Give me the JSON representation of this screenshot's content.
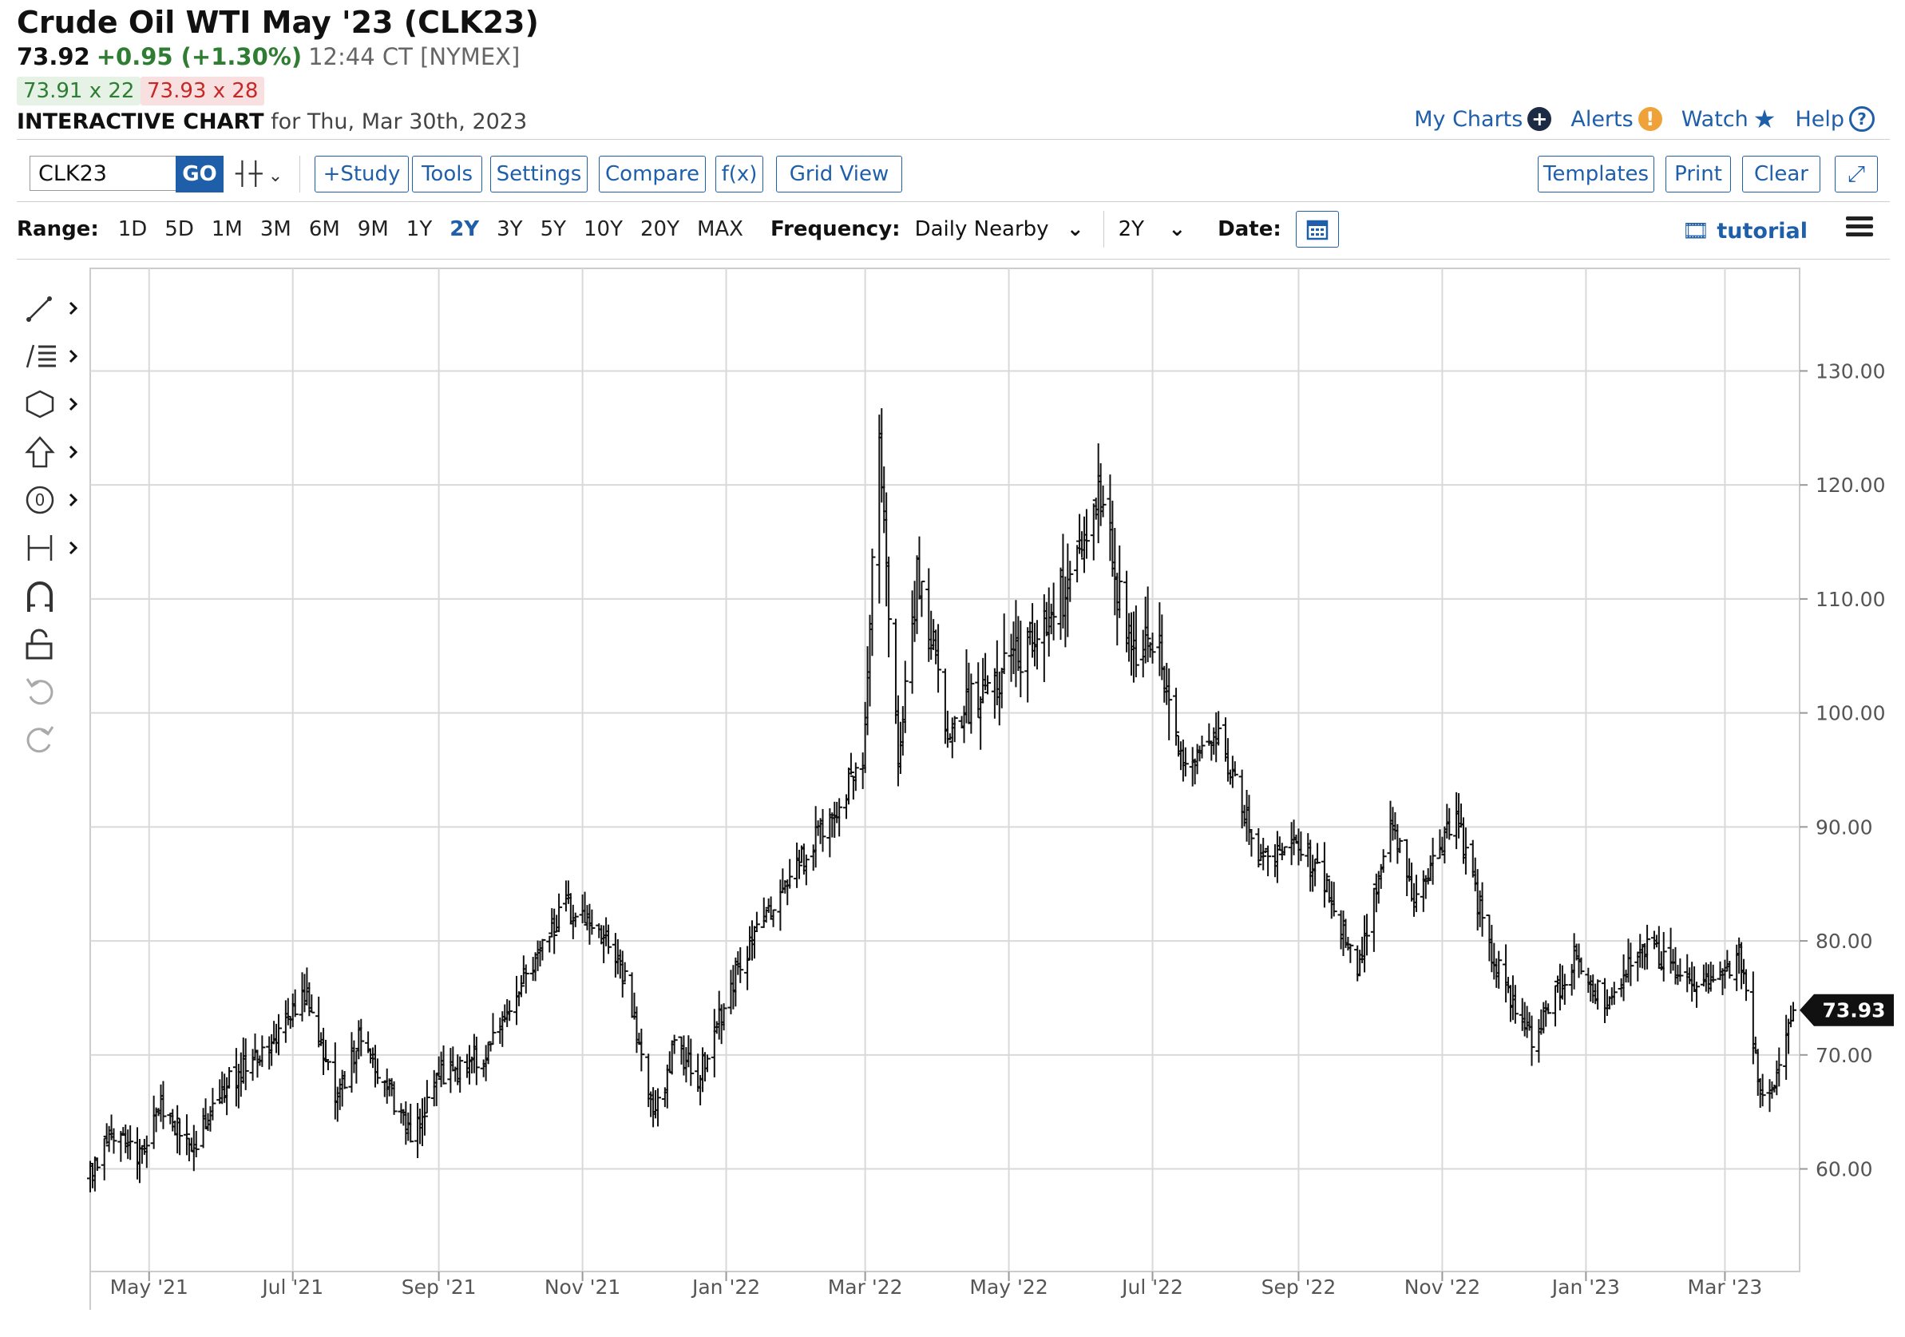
{
  "header": {
    "title": "Crude Oil WTI May '23 (CLK23)",
    "last": "73.92",
    "change": "+0.95 (+1.30%)",
    "time": "12:44 CT [NYMEX]",
    "bid": "73.91 x 22",
    "ask": "73.93 x 28",
    "chart_label": "INTERACTIVE CHART",
    "chart_date": "for Thu, Mar 30th, 2023"
  },
  "toplinks": {
    "my_charts": "My Charts",
    "alerts": "Alerts",
    "watch": "Watch",
    "help": "Help"
  },
  "toolbar": {
    "symbol": "CLK23",
    "go": "GO",
    "study": "+Study",
    "tools": "Tools",
    "settings": "Settings",
    "compare": "Compare",
    "fx": "f(x)",
    "grid_view": "Grid View",
    "templates": "Templates",
    "print": "Print",
    "clear": "Clear"
  },
  "range": {
    "label": "Range:",
    "options": [
      "1D",
      "5D",
      "1M",
      "3M",
      "6M",
      "9M",
      "1Y",
      "2Y",
      "3Y",
      "5Y",
      "10Y",
      "20Y",
      "MAX"
    ],
    "selected": "2Y",
    "frequency_label": "Frequency:",
    "frequency_value": "Daily Nearby",
    "period_value": "2Y",
    "date_label": "Date:"
  },
  "tutorial": "tutorial",
  "colors": {
    "accent": "#1f5faa",
    "up": "#2e7d32",
    "down": "#c62828",
    "bars": "#111111",
    "grid": "#d9d9d9"
  },
  "chart_data": {
    "type": "ohlc",
    "x_labels": [
      "May '21",
      "Jul '21",
      "Sep '21",
      "Nov '21",
      "Jan '22",
      "Mar '22",
      "May '22",
      "Jul '22",
      "Sep '22",
      "Nov '22",
      "Jan '23",
      "Mar '23"
    ],
    "y_tick_labels": [
      "130.00",
      "120.00",
      "110.00",
      "100.00",
      "90.00",
      "80.00",
      "70.00",
      "60.00"
    ],
    "ylim": [
      51,
      139
    ],
    "last_price_label": "73.93",
    "last_price": 73.93,
    "grid": true,
    "date_range": [
      "2021-04-06",
      "2023-03-30"
    ],
    "close_path": [
      [
        "2021-04-06",
        59.5
      ],
      [
        "2021-04-15",
        63.0
      ],
      [
        "2021-04-26",
        61.2
      ],
      [
        "2021-05-06",
        65.5
      ],
      [
        "2021-05-20",
        62.0
      ],
      [
        "2021-06-01",
        67.0
      ],
      [
        "2021-06-15",
        70.0
      ],
      [
        "2021-06-30",
        73.0
      ],
      [
        "2021-07-06",
        75.5
      ],
      [
        "2021-07-20",
        66.0
      ],
      [
        "2021-07-30",
        72.0
      ],
      [
        "2021-08-20",
        62.5
      ],
      [
        "2021-09-01",
        68.0
      ],
      [
        "2021-09-20",
        70.0
      ],
      [
        "2021-10-05",
        76.0
      ],
      [
        "2021-10-25",
        83.0
      ],
      [
        "2021-11-10",
        81.0
      ],
      [
        "2021-11-20",
        76.0
      ],
      [
        "2021-12-01",
        64.0
      ],
      [
        "2021-12-10",
        71.0
      ],
      [
        "2021-12-20",
        68.0
      ],
      [
        "2022-01-05",
        77.0
      ],
      [
        "2022-01-25",
        85.0
      ],
      [
        "2022-02-15",
        91.0
      ],
      [
        "2022-02-28",
        96.0
      ],
      [
        "2022-03-07",
        124.0
      ],
      [
        "2022-03-15",
        96.0
      ],
      [
        "2022-03-23",
        112.0
      ],
      [
        "2022-04-05",
        98.0
      ],
      [
        "2022-04-20",
        102.0
      ],
      [
        "2022-05-05",
        105.0
      ],
      [
        "2022-05-20",
        108.0
      ],
      [
        "2022-06-08",
        120.0
      ],
      [
        "2022-06-22",
        104.0
      ],
      [
        "2022-07-01",
        107.0
      ],
      [
        "2022-07-14",
        95.0
      ],
      [
        "2022-07-29",
        98.0
      ],
      [
        "2022-08-16",
        87.0
      ],
      [
        "2022-08-31",
        89.0
      ],
      [
        "2022-09-15",
        84.0
      ],
      [
        "2022-09-26",
        77.0
      ],
      [
        "2022-10-10",
        91.0
      ],
      [
        "2022-10-20",
        84.0
      ],
      [
        "2022-11-07",
        91.0
      ],
      [
        "2022-11-20",
        80.0
      ],
      [
        "2022-12-09",
        71.0
      ],
      [
        "2022-12-28",
        79.0
      ],
      [
        "2023-01-10",
        74.0
      ],
      [
        "2023-01-25",
        80.0
      ],
      [
        "2023-02-10",
        77.0
      ],
      [
        "2023-02-25",
        76.0
      ],
      [
        "2023-03-07",
        79.0
      ],
      [
        "2023-03-17",
        66.0
      ],
      [
        "2023-03-24",
        69.0
      ],
      [
        "2023-03-30",
        73.93
      ]
    ]
  }
}
